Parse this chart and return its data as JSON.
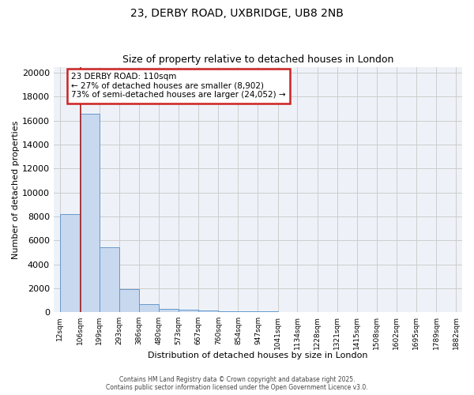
{
  "title_line1": "23, DERBY ROAD, UXBRIDGE, UB8 2NB",
  "title_line2": "Size of property relative to detached houses in London",
  "xlabel": "Distribution of detached houses by size in London",
  "ylabel": "Number of detached properties",
  "bar_color": "#c8d8ee",
  "bar_edge_color": "#6699cc",
  "bins": [
    12,
    106,
    199,
    293,
    386,
    480,
    573,
    667,
    760,
    854,
    947,
    1041,
    1134,
    1228,
    1321,
    1415,
    1508,
    1602,
    1695,
    1789,
    1882
  ],
  "bar_heights": [
    8200,
    16600,
    5400,
    1900,
    700,
    300,
    200,
    150,
    100,
    100,
    50,
    30,
    20,
    15,
    10,
    8,
    5,
    4,
    3,
    2
  ],
  "tick_labels": [
    "12sqm",
    "106sqm",
    "199sqm",
    "293sqm",
    "386sqm",
    "480sqm",
    "573sqm",
    "667sqm",
    "760sqm",
    "854sqm",
    "947sqm",
    "1041sqm",
    "1134sqm",
    "1228sqm",
    "1321sqm",
    "1415sqm",
    "1508sqm",
    "1602sqm",
    "1695sqm",
    "1789sqm",
    "1882sqm"
  ],
  "property_size": 110,
  "vline_color": "#aa2222",
  "annotation_line1": "23 DERBY ROAD: 110sqm",
  "annotation_line2": "← 27% of detached houses are smaller (8,902)",
  "annotation_line3": "73% of semi-detached houses are larger (24,052) →",
  "annotation_box_color": "#cc2222",
  "annotation_bg": "#ffffff",
  "ylim": [
    0,
    20500
  ],
  "yticks": [
    0,
    2000,
    4000,
    6000,
    8000,
    10000,
    12000,
    14000,
    16000,
    18000,
    20000
  ],
  "grid_color": "#cccccc",
  "bg_color": "#eef2f8",
  "footer_line1": "Contains HM Land Registry data © Crown copyright and database right 2025.",
  "footer_line2": "Contains public sector information licensed under the Open Government Licence v3.0."
}
